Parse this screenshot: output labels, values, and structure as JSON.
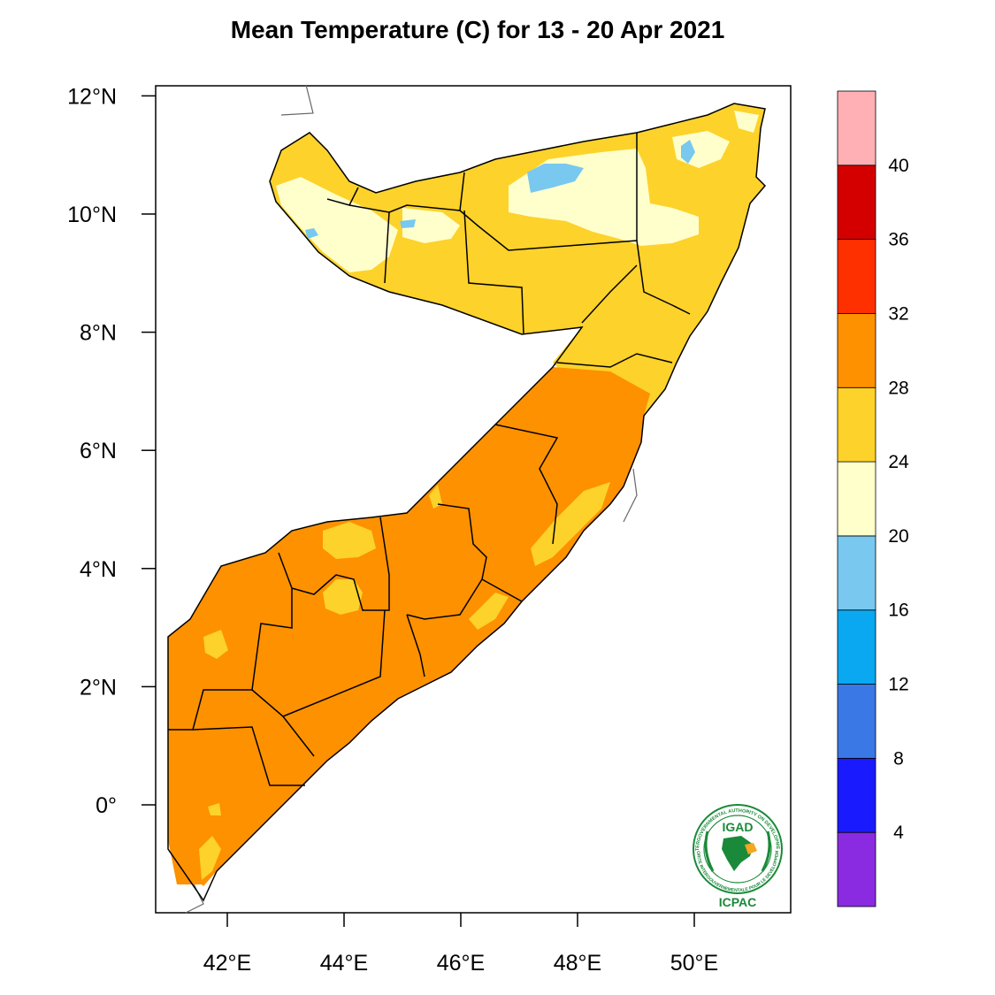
{
  "title": "Mean Temperature (C) for 13 - 20 Apr 2021",
  "map": {
    "region": "Somalia",
    "lon_range": [
      40.8,
      51.6
    ],
    "lat_range": [
      -1.8,
      12.2
    ],
    "x_ticks": [
      {
        "value": 42,
        "label": "42°E"
      },
      {
        "value": 44,
        "label": "44°E"
      },
      {
        "value": 46,
        "label": "46°E"
      },
      {
        "value": 48,
        "label": "48°E"
      },
      {
        "value": 50,
        "label": "50°E"
      }
    ],
    "y_ticks": [
      {
        "value": 12,
        "label": "12°N"
      },
      {
        "value": 10,
        "label": "10°N"
      },
      {
        "value": 8,
        "label": "8°N"
      },
      {
        "value": 6,
        "label": "6°N"
      },
      {
        "value": 4,
        "label": "4°N"
      },
      {
        "value": 2,
        "label": "2°N"
      },
      {
        "value": 0,
        "label": "0°"
      }
    ]
  },
  "colorbar": {
    "colors": [
      "#8a2be2",
      "#1a1aff",
      "#3a78e6",
      "#0aa8f0",
      "#78c8f0",
      "#ffffcc",
      "#fdd22a",
      "#fd9100",
      "#ff3000",
      "#d40000",
      "#ffb0b4"
    ],
    "labels": [
      "4",
      "8",
      "12",
      "16",
      "20",
      "24",
      "28",
      "32",
      "36",
      "40"
    ]
  },
  "logo": {
    "top_text": "IGAD",
    "bottom_text": "ICPAC",
    "ring_top": "INTERGOVERNMENTAL AUTHORITY ON DEVELOPMENT",
    "ring_bottom": "AUTORITE INTERGOUVERNEMENTALE POUR LE DEVELOPPEMENT"
  }
}
